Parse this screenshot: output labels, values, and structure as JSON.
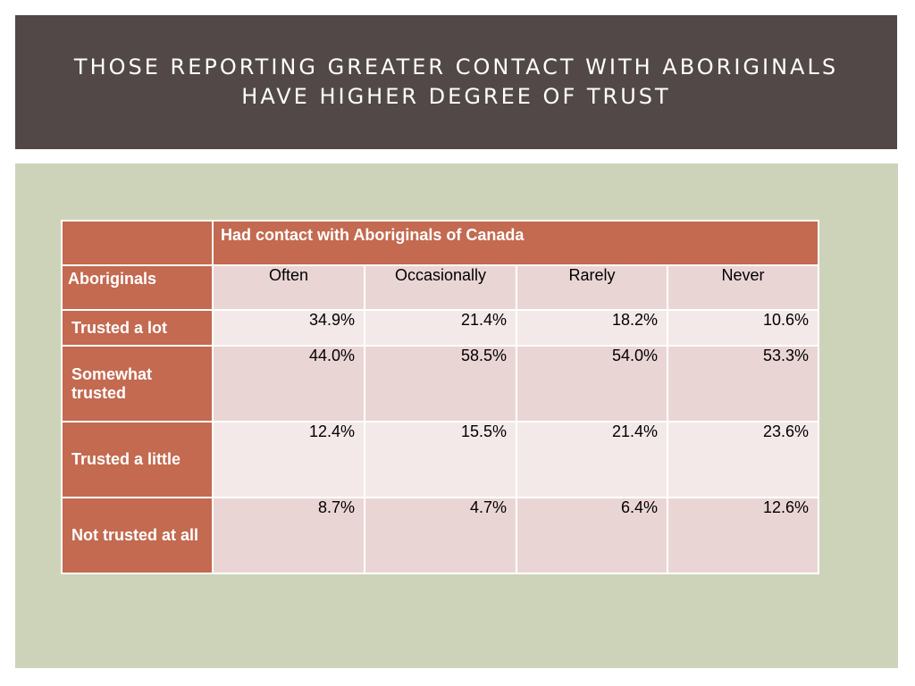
{
  "slide": {
    "title_line1": "THOSE REPORTING GREATER CONTACT WITH ABORIGINALS",
    "title_line2": "HAVE HIGHER DEGREE OF TRUST"
  },
  "table": {
    "group_header": "Had contact with Aboriginals of Canada",
    "corner_label": "Aboriginals",
    "columns": [
      "Often",
      "Occasionally",
      "Rarely",
      "Never"
    ],
    "rows": [
      {
        "label": "Trusted a lot",
        "values": [
          "34.9%",
          "21.4%",
          "18.2%",
          "10.6%"
        ]
      },
      {
        "label": "Somewhat trusted",
        "values": [
          "44.0%",
          "58.5%",
          "54.0%",
          "53.3%"
        ]
      },
      {
        "label": "Trusted a little",
        "values": [
          "12.4%",
          "15.5%",
          "21.4%",
          "23.6%"
        ]
      },
      {
        "label": "Not trusted at all",
        "values": [
          "8.7%",
          "4.7%",
          "6.4%",
          "12.6%"
        ]
      }
    ]
  },
  "colors": {
    "title_bar": "#514847",
    "panel": "#cdd3b9",
    "header_fill": "#c36a50",
    "cell_dark": "#ead5d5",
    "cell_light": "#f3e9e8"
  }
}
